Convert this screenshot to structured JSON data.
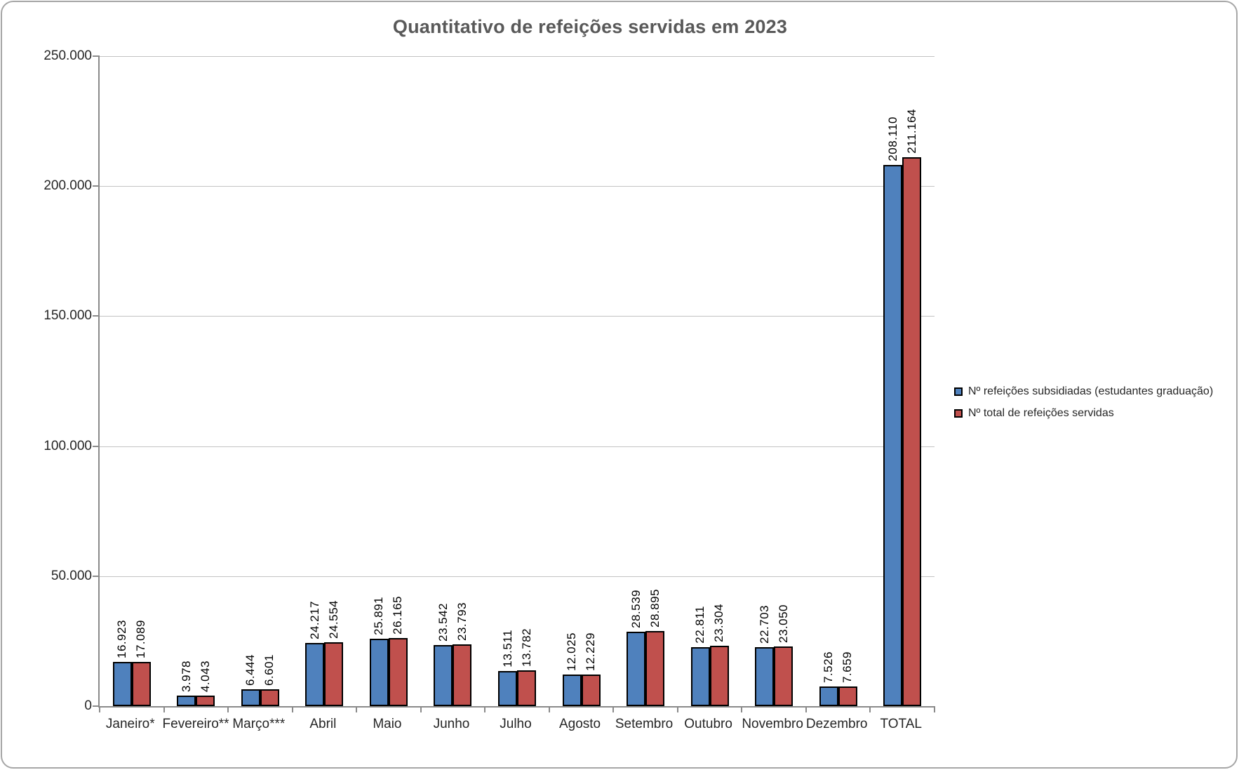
{
  "window": {
    "background": "#FFFFFF",
    "border_color": "#A6A6A6"
  },
  "chart_data": {
    "type": "bar",
    "title": "Quantitativo de refeições servidas em 2023",
    "title_color": "#595959",
    "categories": [
      "Janeiro*",
      "Fevereiro**",
      "Março***",
      "Abril",
      "Maio",
      "Junho",
      "Julho",
      "Agosto",
      "Setembro",
      "Outubro",
      "Novembro",
      "Dezembro",
      "TOTAL"
    ],
    "series": [
      {
        "name": "Nº refeições subsidiadas (estudantes graduação)",
        "color": "#4F81BD",
        "border_color": "#000000",
        "values": [
          16923,
          3978,
          6444,
          24217,
          25891,
          23542,
          13511,
          12025,
          28539,
          22811,
          22703,
          7526,
          208110
        ],
        "value_labels": [
          "16.923",
          "3.978",
          "6.444",
          "24.217",
          "25.891",
          "23.542",
          "13.511",
          "12.025",
          "28.539",
          "22.811",
          "22.703",
          "7.526",
          "208.110"
        ]
      },
      {
        "name": "Nº total de refeições servidas",
        "color": "#C0504D",
        "border_color": "#000000",
        "values": [
          17089,
          4043,
          6601,
          24554,
          26165,
          23793,
          13782,
          12229,
          28895,
          23304,
          23050,
          7659,
          211164
        ],
        "value_labels": [
          "17.089",
          "4.043",
          "6.601",
          "24.554",
          "26.165",
          "23.793",
          "13.782",
          "12.229",
          "28.895",
          "23.304",
          "23.050",
          "7.659",
          "211.164"
        ]
      }
    ],
    "ylim": [
      0,
      250000
    ],
    "yticks": [
      {
        "value": 0,
        "label": "0"
      },
      {
        "value": 50000,
        "label": "50.000"
      },
      {
        "value": 100000,
        "label": "100.000"
      },
      {
        "value": 150000,
        "label": "150.000"
      },
      {
        "value": 200000,
        "label": "200.000"
      },
      {
        "value": 250000,
        "label": "250.000"
      }
    ],
    "grid": true,
    "legend_position": "right",
    "xlabel": "",
    "ylabel": ""
  }
}
